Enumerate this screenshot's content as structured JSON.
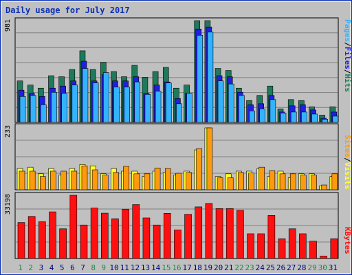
{
  "page": {
    "title": "Daily usage for July 2017"
  },
  "colors": {
    "hits": "#1e7a5a",
    "files": "#1f1fe0",
    "pages": "#33b3ff",
    "visits": "#ffff33",
    "sites": "#ff9a0f",
    "kbytes": "#ff1010",
    "weekday_label": "#000080",
    "weekend_label": "#1a8a4a",
    "plot_bg": "#c0c0c0",
    "border": "#0a2fb8"
  },
  "legend": {
    "hits": "Hits",
    "files": "Files",
    "pages": "Pages",
    "visits": "Visits",
    "sites": "Sites",
    "kbytes": "KBytes",
    "sep": "/"
  },
  "chart_data": [
    {
      "type": "bar",
      "title": "Daily usage for July 2017",
      "panel": "hits-files-pages",
      "y_max_label": "981",
      "ylim": [
        0,
        981
      ],
      "categories": [
        "1",
        "2",
        "3",
        "4",
        "5",
        "6",
        "7",
        "8",
        "9",
        "10",
        "11",
        "12",
        "13",
        "14",
        "15",
        "16",
        "17",
        "18",
        "19",
        "20",
        "21",
        "22",
        "23",
        "24",
        "25",
        "26",
        "27",
        "28",
        "29",
        "30",
        "31"
      ],
      "weekend_days": [
        "1",
        "2",
        "8",
        "9",
        "15",
        "16",
        "22",
        "23",
        "29",
        "30"
      ],
      "series": [
        {
          "name": "Hits",
          "values": [
            400,
            360,
            330,
            450,
            440,
            510,
            690,
            510,
            580,
            490,
            440,
            550,
            435,
            490,
            530,
            330,
            360,
            981,
            981,
            520,
            500,
            330,
            210,
            260,
            350,
            130,
            220,
            210,
            150,
            70,
            150
          ]
        },
        {
          "name": "Files",
          "values": [
            310,
            280,
            250,
            330,
            350,
            400,
            590,
            400,
            460,
            400,
            400,
            440,
            280,
            360,
            390,
            230,
            280,
            900,
            920,
            450,
            440,
            290,
            170,
            180,
            260,
            100,
            160,
            170,
            120,
            40,
            100
          ]
        },
        {
          "name": "Pages",
          "values": [
            250,
            260,
            170,
            290,
            280,
            360,
            520,
            380,
            480,
            340,
            340,
            390,
            270,
            300,
            380,
            180,
            280,
            840,
            870,
            400,
            370,
            260,
            110,
            130,
            220,
            90,
            100,
            100,
            80,
            30,
            60
          ]
        }
      ]
    },
    {
      "type": "bar",
      "panel": "visits-sites",
      "y_max_label": "233",
      "ylim": [
        0,
        233
      ],
      "categories": [
        "1",
        "2",
        "3",
        "4",
        "5",
        "6",
        "7",
        "8",
        "9",
        "10",
        "11",
        "12",
        "13",
        "14",
        "15",
        "16",
        "17",
        "18",
        "19",
        "20",
        "21",
        "22",
        "23",
        "24",
        "25",
        "26",
        "27",
        "28",
        "29",
        "30",
        "31"
      ],
      "series": [
        {
          "name": "Visits",
          "values": [
            80,
            85,
            60,
            80,
            55,
            80,
            95,
            90,
            60,
            80,
            70,
            70,
            50,
            70,
            65,
            55,
            70,
            150,
            233,
            50,
            60,
            70,
            70,
            80,
            50,
            70,
            45,
            60,
            60,
            15,
            50
          ]
        },
        {
          "name": "Sites",
          "values": [
            70,
            70,
            50,
            70,
            70,
            70,
            90,
            75,
            55,
            65,
            88,
            60,
            60,
            82,
            80,
            62,
            65,
            155,
            233,
            45,
            45,
            65,
            63,
            85,
            72,
            60,
            60,
            55,
            55,
            18,
            60
          ]
        }
      ]
    },
    {
      "type": "bar",
      "panel": "kbytes",
      "y_max_label": "33198",
      "ylim": [
        0,
        33198
      ],
      "categories": [
        "1",
        "2",
        "3",
        "4",
        "5",
        "6",
        "7",
        "8",
        "9",
        "10",
        "11",
        "12",
        "13",
        "14",
        "15",
        "16",
        "17",
        "18",
        "19",
        "20",
        "21",
        "22",
        "23",
        "24",
        "25",
        "26",
        "27",
        "28",
        "29",
        "30",
        "31"
      ],
      "series": [
        {
          "name": "KBytes",
          "values": [
            18900,
            22100,
            19300,
            24500,
            15600,
            33198,
            17600,
            26500,
            23800,
            20900,
            25900,
            28300,
            21300,
            17600,
            23700,
            15000,
            23200,
            27100,
            28900,
            26200,
            26200,
            25300,
            13000,
            13000,
            22600,
            10400,
            15600,
            13000,
            9100,
            1300,
            10400
          ]
        }
      ]
    }
  ]
}
